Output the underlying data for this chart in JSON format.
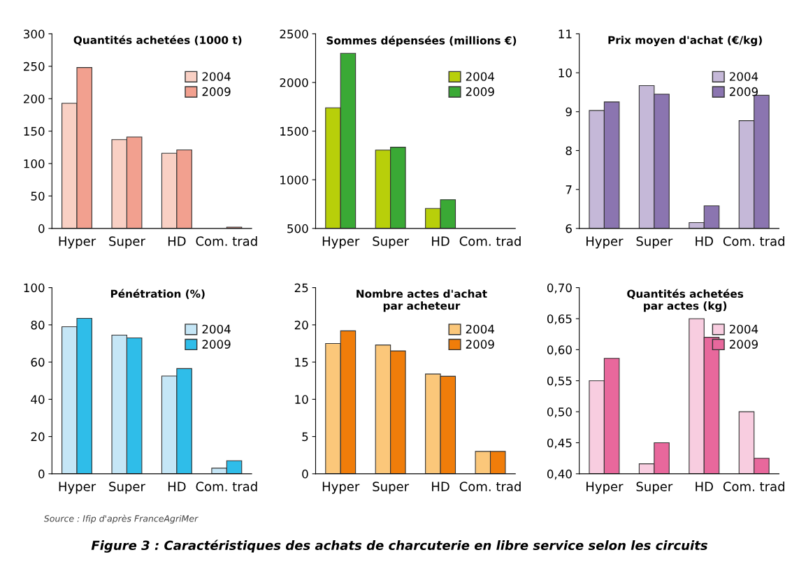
{
  "chart_data": [
    {
      "type": "bar",
      "title": "Quantités achetées (1000 t)",
      "categories": [
        "Hyper",
        "Super",
        "HD",
        "Com. trad"
      ],
      "ylim": [
        0,
        300
      ],
      "yticks": [
        0,
        50,
        100,
        150,
        200,
        250,
        300
      ],
      "legend": "top right",
      "grid": false,
      "series": [
        {
          "name": "2004",
          "color": "#f9d0c4",
          "values": [
            193,
            137,
            116,
            null
          ]
        },
        {
          "name": "2009",
          "color": "#f2a08f",
          "values": [
            248,
            141,
            121,
            2
          ]
        }
      ]
    },
    {
      "type": "bar",
      "title": "Sommes dépensées (millions €)",
      "categories": [
        "Hyper",
        "Super",
        "HD",
        "Com. trad"
      ],
      "ylim": [
        500,
        2500
      ],
      "yticks": [
        500,
        1000,
        1500,
        2000,
        2500
      ],
      "legend": "top right",
      "grid": false,
      "series": [
        {
          "name": "2004",
          "color": "#b8cf0a",
          "values": [
            1740,
            1305,
            705,
            null
          ]
        },
        {
          "name": "2009",
          "color": "#3aa935",
          "values": [
            2300,
            1335,
            795,
            null
          ]
        }
      ]
    },
    {
      "type": "bar",
      "title": "Prix moyen d'achat (€/kg)",
      "categories": [
        "Hyper",
        "Super",
        "HD",
        "Com. trad"
      ],
      "ylim": [
        6,
        11
      ],
      "yticks": [
        6,
        7,
        8,
        9,
        10,
        11
      ],
      "legend": "top right",
      "grid": false,
      "series": [
        {
          "name": "2004",
          "color": "#c5b8d8",
          "values": [
            9.03,
            9.67,
            6.15,
            8.77
          ]
        },
        {
          "name": "2009",
          "color": "#8b75b0",
          "values": [
            9.25,
            9.45,
            6.58,
            9.42
          ]
        }
      ]
    },
    {
      "type": "bar",
      "title": "Pénétration (%)",
      "categories": [
        "Hyper",
        "Super",
        "HD",
        "Com. trad"
      ],
      "ylim": [
        0,
        100
      ],
      "yticks": [
        0,
        20,
        40,
        60,
        80,
        100
      ],
      "legend": "top right",
      "grid": false,
      "series": [
        {
          "name": "2004",
          "color": "#c5e6f6",
          "values": [
            79,
            74.5,
            52.5,
            3
          ]
        },
        {
          "name": "2009",
          "color": "#2fbde9",
          "values": [
            83.5,
            73,
            56.5,
            7
          ]
        }
      ]
    },
    {
      "type": "bar",
      "title": "Nombre actes d'achat\npar acheteur",
      "categories": [
        "Hyper",
        "Super",
        "HD",
        "Com. trad"
      ],
      "ylim": [
        0,
        25
      ],
      "yticks": [
        0,
        5,
        10,
        15,
        20,
        25
      ],
      "legend": "top right",
      "grid": false,
      "series": [
        {
          "name": "2004",
          "color": "#fbc77a",
          "values": [
            17.5,
            17.3,
            13.4,
            3.0
          ]
        },
        {
          "name": "2009",
          "color": "#f07d0a",
          "values": [
            19.2,
            16.5,
            13.1,
            3.0
          ]
        }
      ]
    },
    {
      "type": "bar",
      "title": "Quantités achetées\npar actes (kg)",
      "categories": [
        "Hyper",
        "Super",
        "HD",
        "Com. trad"
      ],
      "ylim": [
        0.4,
        0.7
      ],
      "yticks": [
        {
          "value": 0.4,
          "label": "0,40"
        },
        {
          "value": 0.45,
          "label": "0,45"
        },
        {
          "value": 0.5,
          "label": "0,50"
        },
        {
          "value": 0.55,
          "label": "0,55"
        },
        {
          "value": 0.6,
          "label": "0,60"
        },
        {
          "value": 0.65,
          "label": "0,65"
        },
        {
          "value": 0.7,
          "label": "0,70"
        }
      ],
      "legend": "top right",
      "grid": false,
      "annotations": [
        "Source : Ifip d'après FranceAgriMer",
        "Figure 3 : Caractéristiques des achats de charcuterie en libre service selon les circuits"
      ],
      "series": [
        {
          "name": "2004",
          "color": "#f8cde0",
          "values": [
            0.55,
            0.416,
            0.65,
            0.5
          ]
        },
        {
          "name": "2009",
          "color": "#e8689c",
          "values": [
            0.586,
            0.45,
            0.62,
            0.425
          ]
        }
      ]
    }
  ]
}
